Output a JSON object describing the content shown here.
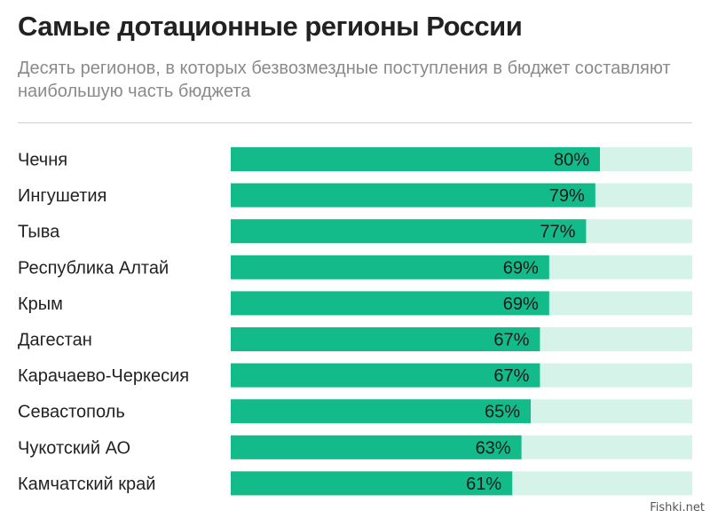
{
  "header": {
    "title": "Самые дотационные регионы России",
    "subtitle": "Десять регионов, в которых безвозмездные поступления в бюджет составляют наибольшую часть бюджета"
  },
  "watermark": "Fishki.net",
  "colors": {
    "bar": "#14bb8a",
    "track": "#d6f3e9",
    "label": "#222222"
  },
  "chart_data": {
    "type": "bar",
    "orientation": "horizontal",
    "categories": [
      "Чечня",
      "Ингушетия",
      "Тыва",
      "Республика Алтай",
      "Крым",
      "Дагестан",
      "Карачаево-Черкесия",
      "Севастополь",
      "Чукотский  АО",
      "Камчатский край"
    ],
    "values": [
      80,
      79,
      77,
      69,
      69,
      67,
      67,
      65,
      63,
      61
    ],
    "value_labels": [
      "80%",
      "79%",
      "77%",
      "69%",
      "69%",
      "67%",
      "67%",
      "65%",
      "63%",
      "61%"
    ],
    "xlim": [
      0,
      100
    ],
    "grid": false,
    "legend": "none"
  }
}
